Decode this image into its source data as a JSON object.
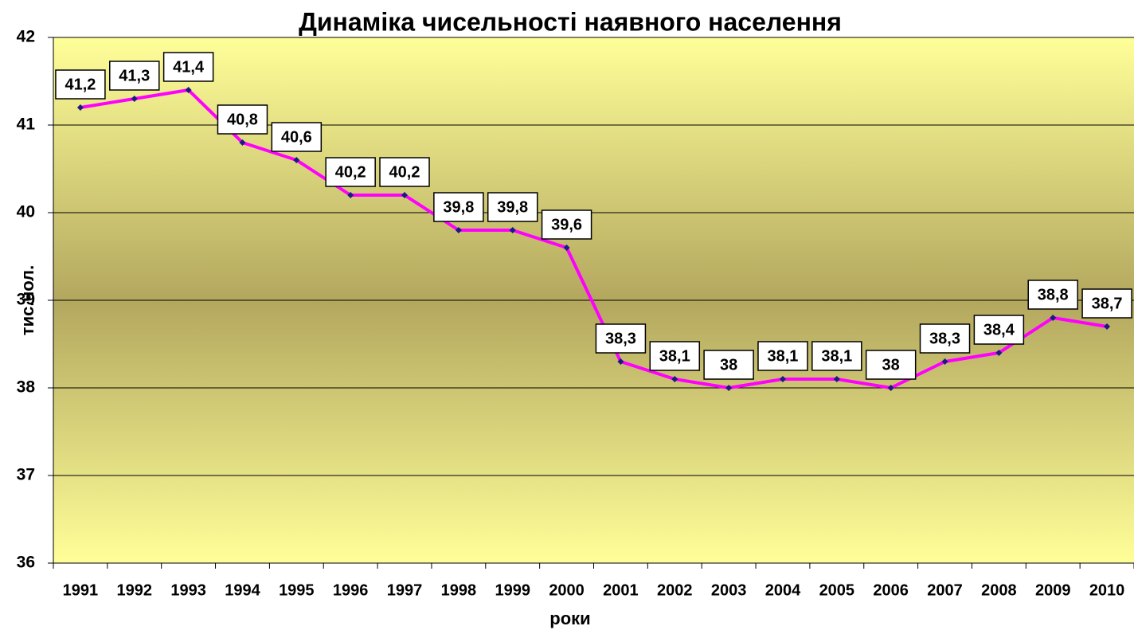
{
  "chart_data": {
    "type": "line",
    "title": "Динаміка чисельності наявного населення",
    "x_label": "роки",
    "y_label": "тис.чол.",
    "categories": [
      "1991",
      "1992",
      "1993",
      "1994",
      "1995",
      "1996",
      "1997",
      "1998",
      "1999",
      "2000",
      "2001",
      "2002",
      "2003",
      "2004",
      "2005",
      "2006",
      "2007",
      "2008",
      "2009",
      "2010"
    ],
    "values": [
      41.2,
      41.3,
      41.4,
      40.8,
      40.6,
      40.2,
      40.2,
      39.8,
      39.8,
      39.6,
      38.3,
      38.1,
      38,
      38.1,
      38.1,
      38,
      38.3,
      38.4,
      38.8,
      38.7
    ],
    "value_labels": [
      "41,2",
      "41,3",
      "41,4",
      "40,8",
      "40,6",
      "40,2",
      "40,2",
      "39,8",
      "39,8",
      "39,6",
      "38,3",
      "38,1",
      "38",
      "38,1",
      "38,1",
      "38",
      "38,3",
      "38,4",
      "38,8",
      "38,7"
    ],
    "color": "#ff00ff",
    "marker_color": "#1a1a80",
    "ylim": [
      36,
      42
    ],
    "yticks": [
      36,
      37,
      38,
      39,
      40,
      41,
      42
    ],
    "grid": true
  }
}
